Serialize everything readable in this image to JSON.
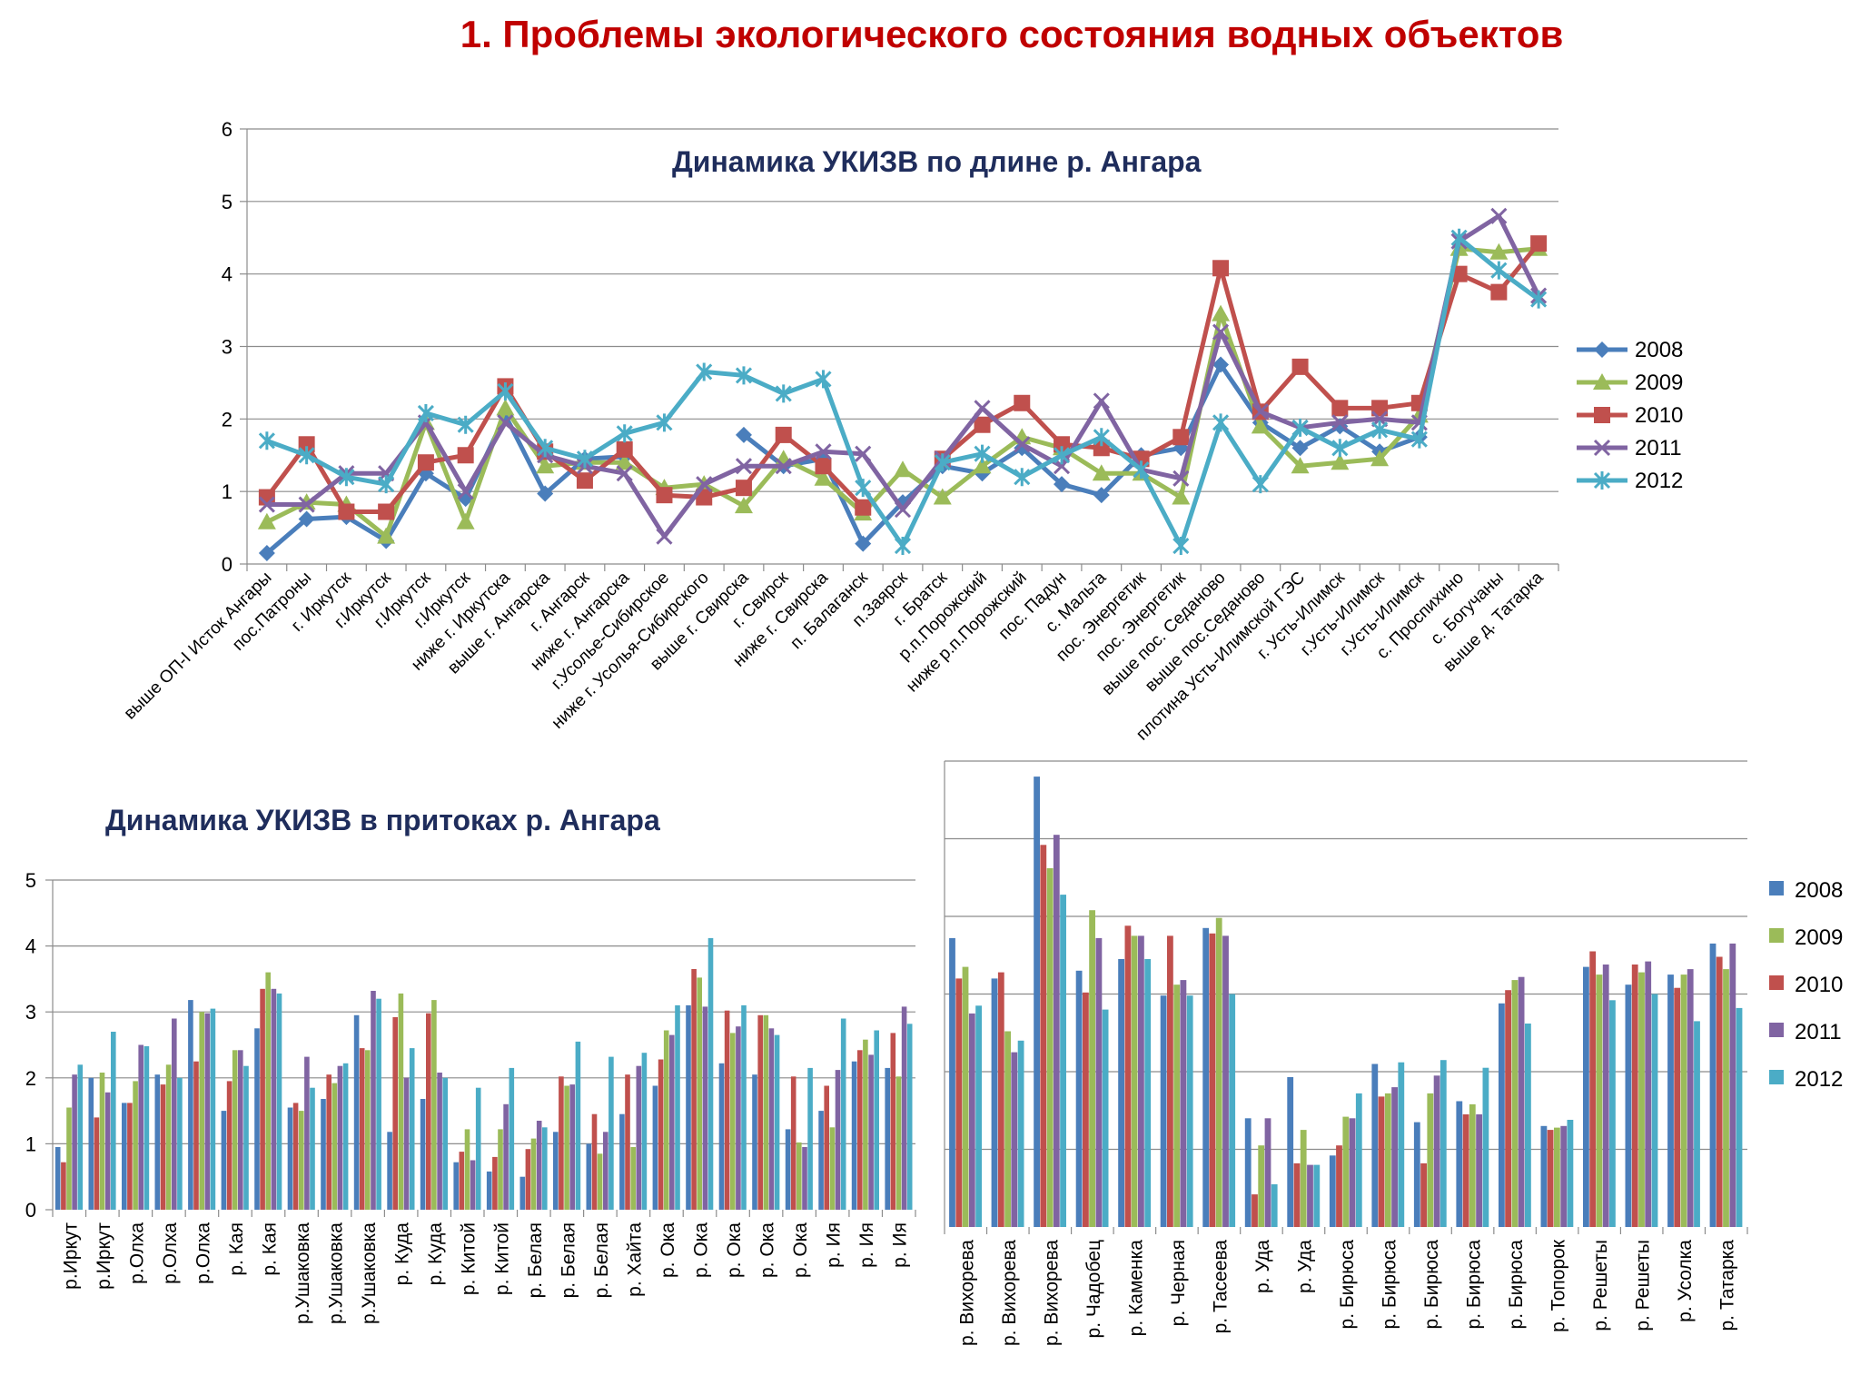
{
  "page": {
    "title": "1. Проблемы экологического состояния водных объектов"
  },
  "colors": {
    "2008": "#4a7ebb",
    "2009": "#9bbb59",
    "2010": "#c0504d",
    "2011": "#8064a2",
    "2012": "#4bacc6"
  },
  "chart_data": [
    {
      "id": "main",
      "type": "line",
      "title": "Динамика УКИЗВ по  длине р. Ангара",
      "ylim": [
        0,
        6
      ],
      "yticks": [
        0,
        1,
        2,
        3,
        4,
        5,
        6
      ],
      "grid": true,
      "legend_position": "right",
      "categories": [
        "выше ОП-I Исток Ангары",
        "пос.Патроны",
        "г. Иркутск",
        "г.Иркутск",
        "г.Иркутск",
        "г.Иркутск",
        "ниже г. Иркутска",
        "выше г. Ангарска",
        "г. Ангарск",
        "ниже г. Ангарска",
        "г.Усолье-Сибирское",
        "ниже г. Усолья-Сибирского",
        "выше г. Свирска",
        "г. Свирск",
        "ниже г. Свирска",
        "п. Балаганск",
        "п.Заярск",
        "г. Братск",
        "р.п.Порожский",
        "ниже р.п.Порожский",
        "пос. Падун",
        "с. Мальта",
        "пос. Энергетик",
        "пос. Энергетик",
        "выше пос. Седаново",
        "выше пос.Седаново",
        "плотина Усть-Илимской ГЭС",
        "г. Усть-Илимск",
        "г.Усть-Илимск",
        "г.Усть-Илимск",
        "с. Проспихино",
        "с. Богучаны",
        "выше д. Татарка"
      ],
      "series": [
        {
          "name": "2008",
          "marker": "diamond",
          "values": [
            0.15,
            0.62,
            0.65,
            0.32,
            1.25,
            0.9,
            2.05,
            0.97,
            1.45,
            1.48,
            null,
            null,
            1.78,
            1.35,
            1.45,
            0.28,
            0.85,
            1.35,
            1.25,
            1.6,
            1.1,
            0.95,
            1.5,
            1.6,
            2.75,
            1.95,
            1.6,
            1.9,
            1.55,
            1.75,
            null,
            null,
            null
          ]
        },
        {
          "name": "2009",
          "marker": "triangle",
          "values": [
            0.58,
            0.85,
            0.82,
            0.38,
            1.95,
            0.58,
            2.15,
            1.35,
            1.4,
            1.4,
            1.05,
            1.1,
            0.8,
            1.45,
            1.18,
            0.7,
            1.3,
            0.92,
            1.35,
            1.75,
            1.6,
            1.25,
            1.25,
            0.92,
            3.45,
            1.9,
            1.35,
            1.4,
            1.45,
            2.05,
            4.35,
            4.3,
            4.35
          ]
        },
        {
          "name": "2010",
          "marker": "square",
          "values": [
            0.92,
            1.65,
            0.72,
            0.72,
            1.4,
            1.5,
            2.45,
            1.55,
            1.15,
            1.58,
            0.95,
            0.92,
            1.05,
            1.78,
            1.35,
            0.78,
            null,
            1.45,
            1.92,
            2.22,
            1.65,
            1.6,
            1.45,
            1.75,
            4.08,
            2.1,
            2.72,
            2.15,
            2.15,
            2.22,
            4.0,
            3.75,
            4.42
          ]
        },
        {
          "name": "2011",
          "marker": "x",
          "values": [
            0.82,
            0.82,
            1.25,
            1.25,
            1.95,
            1.0,
            1.95,
            1.5,
            1.35,
            1.25,
            0.38,
            1.1,
            1.35,
            1.35,
            1.55,
            1.52,
            0.75,
            1.45,
            2.15,
            1.65,
            1.35,
            2.25,
            1.3,
            1.18,
            3.2,
            2.1,
            1.88,
            1.95,
            2.0,
            1.95,
            4.45,
            4.8,
            3.7
          ]
        },
        {
          "name": "2012",
          "marker": "star",
          "values": [
            1.7,
            1.5,
            1.2,
            1.1,
            2.08,
            1.92,
            2.38,
            1.6,
            1.45,
            1.8,
            1.95,
            2.65,
            2.6,
            2.35,
            2.55,
            1.05,
            0.25,
            1.4,
            1.52,
            1.2,
            1.5,
            1.75,
            1.3,
            0.25,
            1.95,
            1.1,
            1.88,
            1.6,
            1.85,
            1.72,
            4.5,
            4.05,
            3.65
          ]
        }
      ]
    },
    {
      "id": "left",
      "type": "bar",
      "title": "Динамика УКИЗВ в  притоках р. Ангара",
      "ylim": [
        0,
        5
      ],
      "yticks": [
        0,
        1,
        2,
        3,
        4,
        5
      ],
      "grid": true,
      "categories": [
        "р.Иркут",
        "р.Иркут",
        "р.Олха",
        "р.Олха",
        "р.Олха",
        "р. Кая",
        "р. Кая",
        "р.Ушаковка",
        "р.Ушаковка",
        "р.Ушаковка",
        "р. Куда",
        "р. Куда",
        "р. Китой",
        "р. Китой",
        "р. Белая",
        "р. Белая",
        "р. Белая",
        "р. Хайта",
        "р. Ока",
        "р. Ока",
        "р. Ока",
        "р. Ока",
        "р. Ока",
        "р. Ия",
        "р. Ия",
        "р. Ия"
      ],
      "series": [
        {
          "name": "2008",
          "values": [
            0.95,
            2.0,
            1.62,
            2.05,
            3.18,
            1.5,
            2.75,
            1.55,
            1.68,
            2.95,
            1.18,
            1.68,
            0.72,
            0.58,
            0.5,
            1.18,
            1.0,
            1.45,
            1.88,
            3.1,
            2.22,
            2.05,
            1.22,
            1.5,
            2.25,
            2.15
          ]
        },
        {
          "name": "2010",
          "values": [
            0.72,
            1.4,
            1.62,
            1.9,
            2.25,
            1.95,
            3.35,
            1.62,
            2.05,
            2.45,
            2.92,
            2.98,
            0.88,
            0.8,
            0.92,
            2.02,
            1.45,
            2.05,
            2.28,
            3.65,
            3.02,
            2.95,
            2.02,
            1.88,
            2.42,
            2.68
          ]
        },
        {
          "name": "2009",
          "values": [
            1.55,
            2.08,
            1.95,
            2.2,
            3.0,
            2.42,
            3.6,
            1.5,
            1.92,
            2.42,
            3.28,
            3.18,
            1.22,
            1.22,
            1.08,
            1.88,
            0.85,
            0.95,
            2.72,
            3.52,
            2.68,
            2.95,
            1.02,
            1.25,
            2.58,
            2.02
          ]
        },
        {
          "name": "2011",
          "values": [
            2.05,
            1.78,
            2.5,
            2.9,
            2.98,
            2.42,
            3.35,
            2.32,
            2.18,
            3.32,
            2.0,
            2.08,
            0.75,
            1.6,
            1.35,
            1.9,
            1.18,
            2.18,
            2.65,
            3.08,
            2.78,
            2.75,
            0.95,
            2.12,
            2.35,
            3.08
          ]
        },
        {
          "name": "2012",
          "values": [
            2.2,
            2.7,
            2.48,
            2.0,
            3.05,
            2.18,
            3.28,
            1.85,
            2.22,
            3.2,
            2.45,
            2.0,
            1.85,
            2.15,
            1.25,
            2.55,
            2.32,
            2.38,
            3.1,
            4.12,
            3.1,
            2.65,
            2.15,
            2.9,
            2.72,
            2.82
          ]
        }
      ]
    },
    {
      "id": "right",
      "type": "bar",
      "ylim": [
        0,
        6
      ],
      "grid": true,
      "legend_position": "right",
      "categories": [
        "р. Вихорева",
        "р. Вихорева",
        "р. Вихорева",
        "р. Чадобец",
        "р. Каменка",
        "р. Черная",
        "р. Тасеева",
        "р. Уда",
        "р. Уда",
        "р. Бирюса",
        "р. Бирюса",
        "р. Бирюса",
        "р. Бирюса",
        "р. Бирюса",
        "р. Топорок",
        "р. Решеты",
        "р. Решеты",
        "р. Усолка",
        "р. Татарка"
      ],
      "series": [
        {
          "name": "2008",
          "values": [
            3.72,
            3.2,
            5.8,
            3.3,
            3.45,
            2.98,
            3.85,
            1.4,
            1.93,
            0.92,
            2.1,
            1.35,
            1.62,
            2.88,
            1.3,
            3.35,
            3.12,
            3.25,
            3.65
          ]
        },
        {
          "name": "2010",
          "values": [
            3.2,
            3.28,
            4.92,
            3.02,
            3.88,
            3.75,
            3.78,
            0.42,
            0.82,
            1.05,
            1.68,
            0.82,
            1.45,
            3.05,
            1.25,
            3.55,
            3.38,
            3.08,
            3.48
          ]
        },
        {
          "name": "2009",
          "values": [
            3.35,
            2.52,
            4.62,
            4.08,
            3.75,
            3.12,
            3.98,
            1.05,
            1.25,
            1.42,
            1.72,
            1.72,
            1.58,
            3.18,
            1.28,
            3.25,
            3.28,
            3.25,
            3.32
          ]
        },
        {
          "name": "2011",
          "values": [
            2.75,
            2.25,
            5.05,
            3.72,
            3.75,
            3.18,
            3.75,
            1.4,
            0.8,
            1.4,
            1.8,
            1.95,
            1.45,
            3.22,
            1.3,
            3.38,
            3.42,
            3.32,
            3.65
          ]
        },
        {
          "name": "2012",
          "values": [
            2.85,
            2.4,
            4.28,
            2.8,
            3.45,
            2.98,
            3.0,
            0.55,
            0.8,
            1.72,
            2.12,
            2.15,
            2.05,
            2.62,
            1.38,
            2.92,
            3.0,
            2.65,
            2.82
          ]
        }
      ]
    }
  ],
  "legend": [
    "2008",
    "2009",
    "2010",
    "2011",
    "2012"
  ]
}
